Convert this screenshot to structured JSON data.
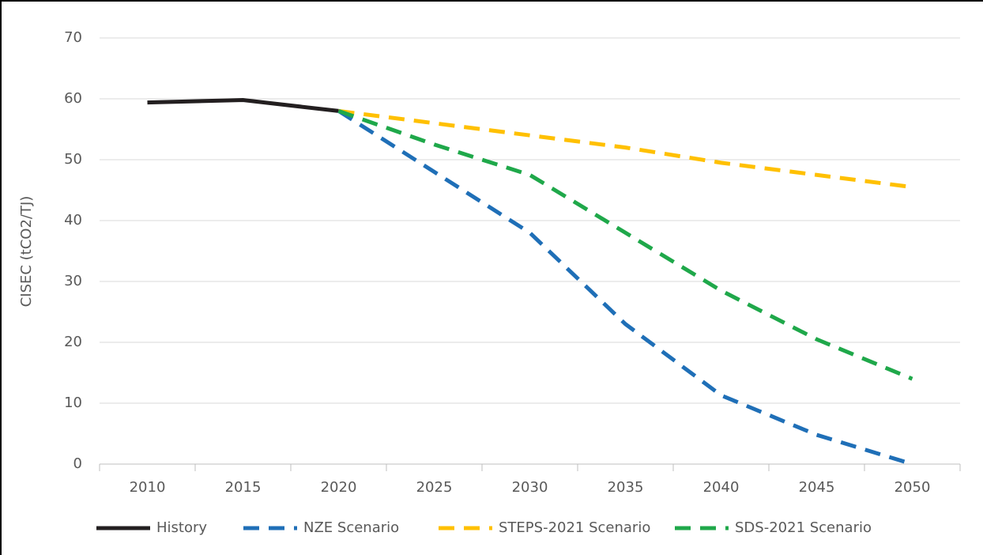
{
  "chart_data": {
    "type": "line",
    "y_label": "CISEC (tCO2/TJ)",
    "categories": [
      "2010",
      "2015",
      "2020",
      "2025",
      "2030",
      "2035",
      "2040",
      "2045",
      "2050"
    ],
    "series": [
      {
        "name": "History",
        "color": "#231f20",
        "line_style": "solid",
        "values": [
          59.4,
          59.8,
          58.0,
          null,
          null,
          null,
          null,
          null,
          null
        ]
      },
      {
        "name": "NZE Scenario",
        "color": "#1f6fb7",
        "line_style": "dashed",
        "values": [
          null,
          null,
          58.0,
          48,
          38,
          23,
          11.3,
          4.8,
          0
        ]
      },
      {
        "name": "STEPS-2021 Scenario",
        "color": "#ffc000",
        "line_style": "dashed",
        "values": [
          null,
          null,
          58.0,
          56,
          54,
          52,
          49.5,
          47.5,
          45.5
        ]
      },
      {
        "name": "SDS-2021 Scenario",
        "color": "#1fa84a",
        "line_style": "dashed",
        "values": [
          null,
          null,
          58.0,
          52.5,
          47.5,
          38,
          28.5,
          20.5,
          14
        ]
      }
    ],
    "ylim": [
      0,
      70
    ],
    "yticks": [
      0,
      10,
      20,
      30,
      40,
      50,
      60,
      70
    ],
    "grid": true,
    "legend": "bottom"
  }
}
